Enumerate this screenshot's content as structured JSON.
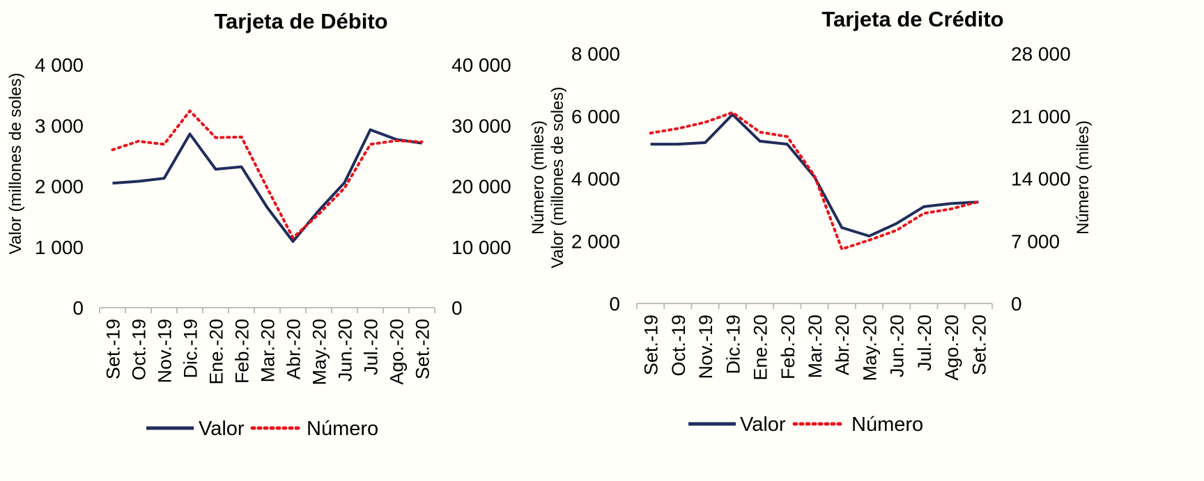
{
  "colors": {
    "valor": "#1f2d5c",
    "numero": "#e8121b",
    "axis": "#bfbfbf",
    "background": "#fffef8"
  },
  "chart_data": [
    {
      "type": "line",
      "title": "Tarjeta de Débito",
      "ylabel": "Valor  (millones de soles)",
      "y2label": "Número  (miles)",
      "categories": [
        "Set.-19",
        "Oct.-19",
        "Nov.-19",
        "Dic.-19",
        "Ene.-20",
        "Feb.-20",
        "Mar.-20",
        "Abr.-20",
        "May.-20",
        "Jun.-20",
        "Jul.-20",
        "Ago.-20",
        "Set.-20"
      ],
      "ylim": [
        0,
        4000
      ],
      "y2lim": [
        0,
        40000
      ],
      "yticks": [
        "0",
        "1 000",
        "2 000",
        "3 000",
        "4 000"
      ],
      "y2ticks": [
        "0",
        "10 000",
        "20 000",
        "30 000",
        "40 000"
      ],
      "series": [
        {
          "name": "Valor",
          "axis": "left",
          "values": [
            2050,
            2080,
            2130,
            2860,
            2280,
            2320,
            1650,
            1090,
            1600,
            2060,
            2930,
            2770,
            2710
          ]
        },
        {
          "name": "Número",
          "axis": "right",
          "values": [
            26000,
            27400,
            26900,
            32400,
            28000,
            28100,
            19700,
            11500,
            15400,
            19700,
            26900,
            27500,
            27300
          ]
        }
      ],
      "legend": [
        "Valor",
        "Número"
      ],
      "legend_position": "bottom"
    },
    {
      "type": "line",
      "title": "Tarjeta de Crédito",
      "ylabel": "Valor  (millones de soles)",
      "y2label": "Número  (miles)",
      "categories": [
        "Set.-19",
        "Oct.-19",
        "Nov.-19",
        "Dic.-19",
        "Ene.-20",
        "Feb.-20",
        "Mar.-20",
        "Abr.-20",
        "May.-20",
        "Jun.-20",
        "Jul.-20",
        "Ago.-20",
        "Set.-20"
      ],
      "ylim": [
        0,
        8000
      ],
      "y2lim": [
        0,
        28000
      ],
      "yticks": [
        "0",
        "2 000",
        "4 000",
        "6 000",
        "8 000"
      ],
      "y2ticks": [
        "0",
        "7 000",
        "14 000",
        "21 000",
        "28 000"
      ],
      "series": [
        {
          "name": "Valor",
          "axis": "left",
          "values": [
            5100,
            5100,
            5150,
            6050,
            5200,
            5100,
            4050,
            2430,
            2160,
            2560,
            3100,
            3200,
            3250
          ]
        },
        {
          "name": "Número",
          "axis": "right",
          "values": [
            19100,
            19600,
            20300,
            21400,
            19200,
            18700,
            14300,
            6100,
            7100,
            8200,
            10100,
            10600,
            11400
          ]
        }
      ],
      "legend": [
        "Valor",
        "Número"
      ],
      "legend_position": "bottom"
    }
  ]
}
